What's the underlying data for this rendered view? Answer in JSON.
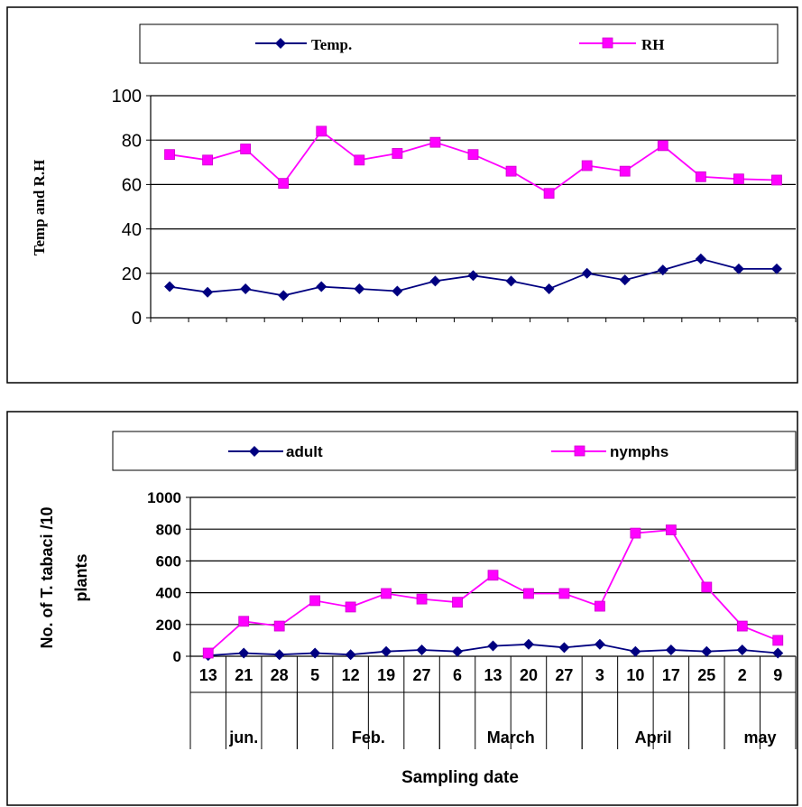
{
  "chart_data": [
    {
      "type": "line",
      "ylabel": "Temp and R.H",
      "xlabel": "",
      "ylim": [
        0,
        100
      ],
      "yticks": [
        "0",
        "20",
        "40",
        "60",
        "80",
        "100"
      ],
      "grid": "horizontal",
      "legend_position": "top",
      "series": [
        {
          "name": "Temp.",
          "color": "#000080",
          "marker": "diamond",
          "values": [
            14,
            11.5,
            13,
            10,
            14,
            13,
            12,
            16.5,
            19,
            16.5,
            13,
            20,
            17,
            21.5,
            26.5,
            22,
            22
          ]
        },
        {
          "name": "RH",
          "color": "#FF00FF",
          "marker": "square",
          "values": [
            73.5,
            71,
            76,
            60.5,
            84,
            71,
            74,
            79,
            73.5,
            66,
            56,
            68.5,
            66,
            77.5,
            63.5,
            62.5,
            62
          ]
        }
      ]
    },
    {
      "type": "line",
      "ylabel": "No. of T. tabaci /10 plants",
      "xlabel": "Sampling date",
      "ylim": [
        0,
        1000
      ],
      "yticks": [
        "0",
        "200",
        "400",
        "600",
        "800",
        "1000"
      ],
      "grid": "horizontal",
      "legend_position": "top",
      "categories": [
        "13",
        "21",
        "28",
        "5",
        "12",
        "19",
        "27",
        "6",
        "13",
        "20",
        "27",
        "3",
        "10",
        "17",
        "25",
        "2",
        "9"
      ],
      "groups": [
        {
          "label": "jun.",
          "count": 3
        },
        {
          "label": "Feb.",
          "count": 4
        },
        {
          "label": "March",
          "count": 4
        },
        {
          "label": "April",
          "count": 4
        },
        {
          "label": "may",
          "count": 2
        }
      ],
      "series": [
        {
          "name": "adult",
          "color": "#000080",
          "marker": "diamond",
          "values": [
            5,
            20,
            10,
            20,
            10,
            30,
            40,
            30,
            65,
            75,
            55,
            75,
            30,
            40,
            30,
            40,
            20
          ]
        },
        {
          "name": "nymphs",
          "color": "#FF00FF",
          "marker": "square",
          "values": [
            20,
            220,
            190,
            350,
            310,
            395,
            360,
            340,
            510,
            395,
            395,
            315,
            775,
            795,
            435,
            190,
            100
          ]
        }
      ]
    }
  ]
}
